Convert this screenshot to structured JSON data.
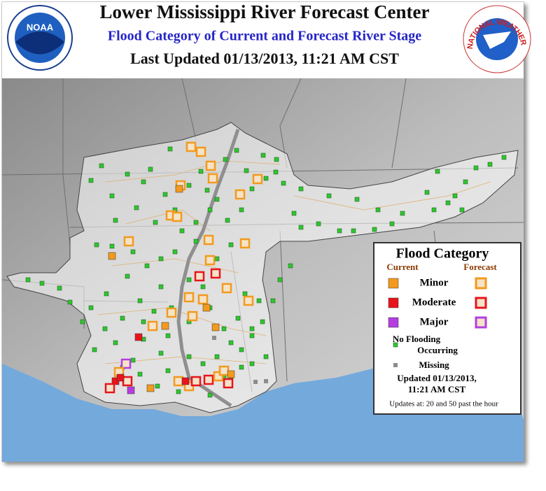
{
  "header": {
    "title": "Lower Mississippi River Forecast Center",
    "subtitle": "Flood Category of Current and Forecast River Stage",
    "updated": "Last Updated 01/13/2013, 11:21 AM CST"
  },
  "logos": {
    "noaa": "NOAA",
    "nws": "NATIONAL WEATHER SERVICE"
  },
  "legend": {
    "title": "Flood Category",
    "columns": [
      "Current",
      "Forecast"
    ],
    "categories": [
      {
        "label": "Minor",
        "color": "#f39a1d"
      },
      {
        "label": "Moderate",
        "color": "#e8141c"
      },
      {
        "label": "Major",
        "color": "#b43de0"
      }
    ],
    "no_flooding": {
      "lines": [
        "No Flooding",
        "Occurring"
      ],
      "color": "#2fc62f"
    },
    "missing": {
      "label": "Missing",
      "color": "#8c8c8c"
    },
    "updated": [
      "Updated 01/13/2013,",
      "11:21 AM CST"
    ],
    "schedule": "Updates at: 20 and 50 past the hour"
  }
}
